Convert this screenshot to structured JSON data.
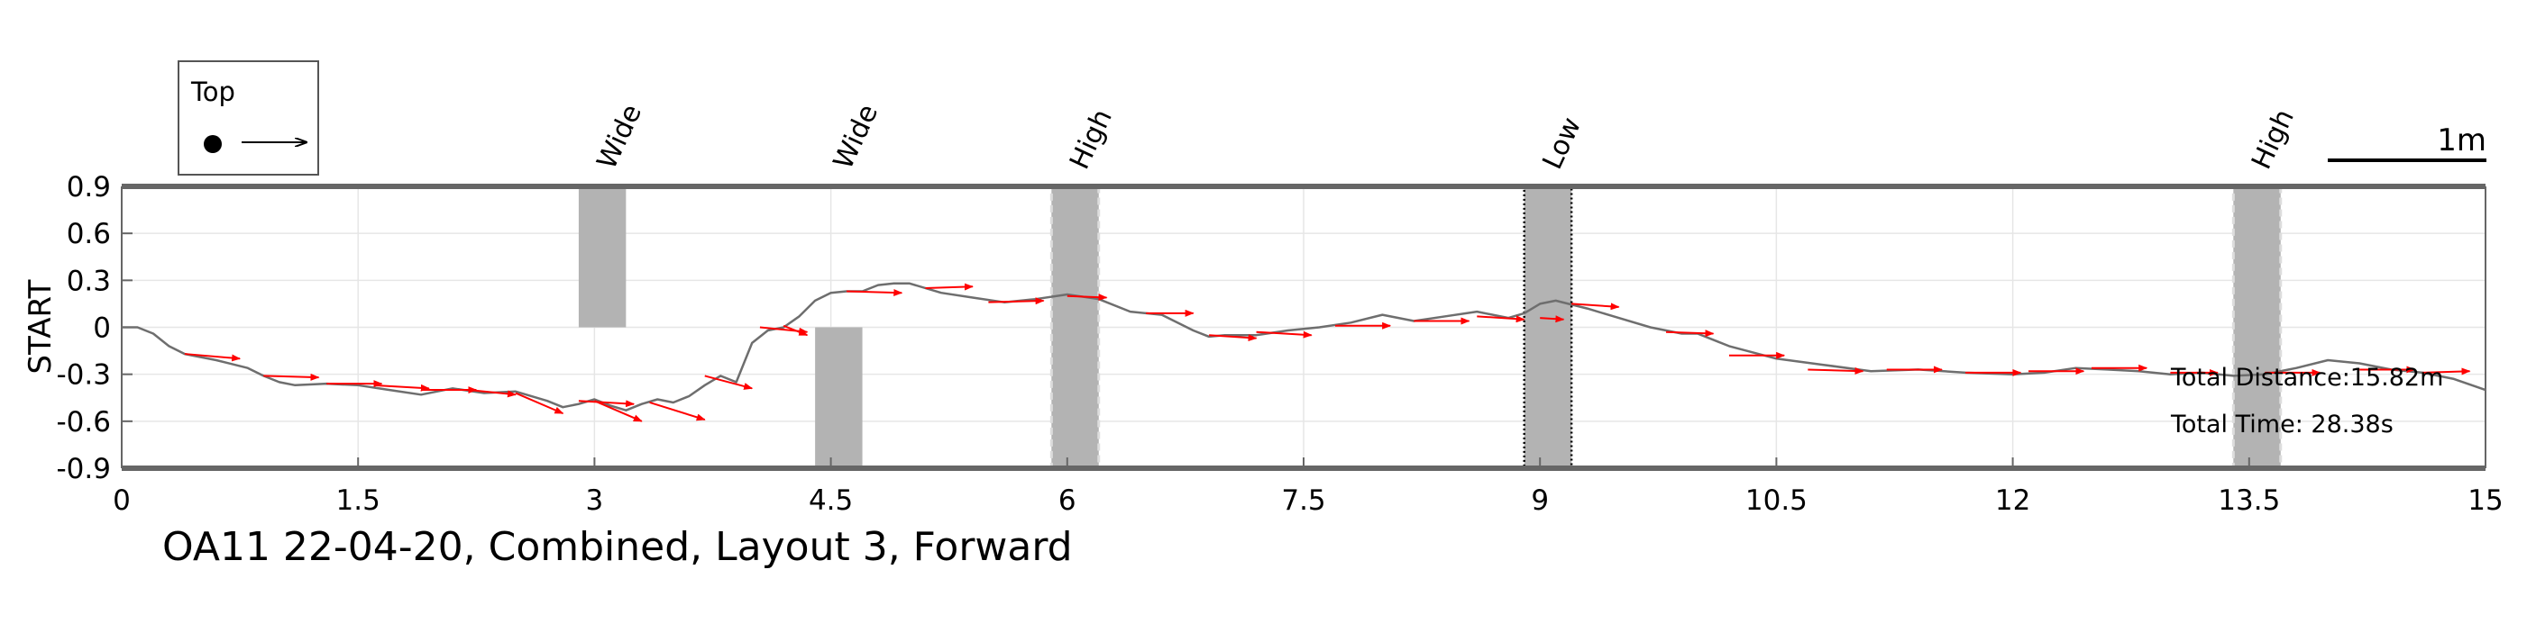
{
  "chart_data": {
    "type": "line",
    "title": "OA11 22-04-20, Combined, Layout 3, Forward",
    "ylabel": "START",
    "xlim": [
      0,
      15
    ],
    "ylim": [
      -0.9,
      0.9
    ],
    "x_ticks": [
      0,
      1.5,
      3,
      4.5,
      6,
      7.5,
      9,
      10.5,
      12,
      13.5,
      15
    ],
    "x_tick_labels": [
      "0",
      "1.5",
      "3",
      "4.5",
      "6",
      "7.5",
      "9",
      "10.5",
      "12",
      "13.5",
      "15"
    ],
    "y_ticks": [
      0.9,
      0.6,
      0.3,
      0,
      -0.3,
      -0.6,
      -0.9
    ],
    "y_tick_labels": [
      "0.9",
      "0.6",
      "0.3",
      "0",
      "-0.3",
      "-0.6",
      "-0.9"
    ],
    "grid": true,
    "legend": {
      "title": "Top",
      "placement": "top-left, outside plot"
    },
    "scale_bar_label": "1m",
    "annotations": [
      "Total Distance:15.82m",
      "Total Time: 28.38s"
    ],
    "obstacles": [
      {
        "label": "Wide",
        "x_start": 2.9,
        "x_end": 3.2,
        "y_start": 0,
        "y_end": 0.9,
        "style": "solid"
      },
      {
        "label": "Wide",
        "x_start": 4.4,
        "x_end": 4.7,
        "y_start": -0.9,
        "y_end": 0,
        "style": "solid"
      },
      {
        "label": "High",
        "x_start": 5.9,
        "x_end": 6.2,
        "y_start": -0.9,
        "y_end": 0.9,
        "style": "dashed"
      },
      {
        "label": "Low",
        "x_start": 8.9,
        "x_end": 9.2,
        "y_start": -0.9,
        "y_end": 0.9,
        "style": "dotted"
      },
      {
        "label": "High",
        "x_start": 13.4,
        "x_end": 13.7,
        "y_start": -0.9,
        "y_end": 0.9,
        "style": "dashed"
      }
    ],
    "series": [
      {
        "color": "#6e6e6e",
        "x": [
          0,
          0.1,
          0.2,
          0.3,
          0.4,
          0.6,
          0.8,
          0.9,
          1.0,
          1.1,
          1.3,
          1.5,
          1.7,
          1.9,
          2.1,
          2.3,
          2.5,
          2.7,
          2.8,
          2.9,
          3.0,
          3.1,
          3.2,
          3.3,
          3.4,
          3.5,
          3.6,
          3.7,
          3.8,
          3.9,
          4.0,
          4.1,
          4.2,
          4.3,
          4.4,
          4.5,
          4.6,
          4.7,
          4.8,
          4.9,
          5.0,
          5.2,
          5.4,
          5.6,
          5.8,
          6.0,
          6.2,
          6.4,
          6.6,
          6.8,
          6.9,
          7.0,
          7.2,
          7.4,
          7.6,
          7.8,
          8.0,
          8.2,
          8.4,
          8.6,
          8.8,
          8.9,
          9.0,
          9.1,
          9.3,
          9.5,
          9.7,
          9.9,
          10.0,
          10.2,
          10.5,
          10.8,
          11.1,
          11.4,
          11.7,
          12.0,
          12.2,
          12.4,
          12.6,
          12.8,
          13.0,
          13.2,
          13.4,
          13.6,
          13.8,
          14.0,
          14.2,
          14.4,
          14.6,
          14.8,
          15.0
        ],
        "y": [
          0.0,
          0.0,
          -0.04,
          -0.12,
          -0.17,
          -0.21,
          -0.26,
          -0.31,
          -0.35,
          -0.37,
          -0.36,
          -0.37,
          -0.4,
          -0.43,
          -0.39,
          -0.42,
          -0.41,
          -0.47,
          -0.51,
          -0.49,
          -0.46,
          -0.5,
          -0.53,
          -0.49,
          -0.46,
          -0.48,
          -0.44,
          -0.37,
          -0.31,
          -0.35,
          -0.1,
          -0.02,
          0.0,
          0.07,
          0.17,
          0.22,
          0.23,
          0.23,
          0.27,
          0.28,
          0.28,
          0.22,
          0.19,
          0.16,
          0.18,
          0.21,
          0.18,
          0.1,
          0.08,
          -0.02,
          -0.06,
          -0.05,
          -0.05,
          -0.02,
          0.0,
          0.03,
          0.08,
          0.04,
          0.07,
          0.1,
          0.06,
          0.09,
          0.15,
          0.17,
          0.12,
          0.06,
          0.0,
          -0.04,
          -0.04,
          -0.12,
          -0.2,
          -0.24,
          -0.28,
          -0.27,
          -0.29,
          -0.3,
          -0.29,
          -0.26,
          -0.27,
          -0.28,
          -0.3,
          -0.29,
          -0.31,
          -0.3,
          -0.26,
          -0.21,
          -0.23,
          -0.27,
          -0.29,
          -0.33,
          -0.4
        ]
      }
    ],
    "heading_arrows": [
      {
        "x": 0.4,
        "y": -0.17,
        "dx": 0.35,
        "dy": -0.03
      },
      {
        "x": 0.9,
        "y": -0.31,
        "dx": 0.35,
        "dy": -0.01
      },
      {
        "x": 1.3,
        "y": -0.36,
        "dx": 0.35,
        "dy": 0.0
      },
      {
        "x": 1.6,
        "y": -0.37,
        "dx": 0.35,
        "dy": -0.02
      },
      {
        "x": 1.9,
        "y": -0.4,
        "dx": 0.35,
        "dy": 0.0
      },
      {
        "x": 2.2,
        "y": -0.4,
        "dx": 0.3,
        "dy": -0.03
      },
      {
        "x": 2.5,
        "y": -0.42,
        "dx": 0.3,
        "dy": -0.13
      },
      {
        "x": 2.9,
        "y": -0.47,
        "dx": 0.35,
        "dy": -0.02
      },
      {
        "x": 3.0,
        "y": -0.47,
        "dx": 0.3,
        "dy": -0.13
      },
      {
        "x": 3.35,
        "y": -0.48,
        "dx": 0.35,
        "dy": -0.11
      },
      {
        "x": 3.7,
        "y": -0.31,
        "dx": 0.3,
        "dy": -0.08
      },
      {
        "x": 4.05,
        "y": 0.0,
        "dx": 0.3,
        "dy": -0.03
      },
      {
        "x": 4.2,
        "y": 0.01,
        "dx": 0.15,
        "dy": -0.06
      },
      {
        "x": 4.6,
        "y": 0.23,
        "dx": 0.35,
        "dy": -0.01
      },
      {
        "x": 5.1,
        "y": 0.25,
        "dx": 0.3,
        "dy": 0.01
      },
      {
        "x": 5.5,
        "y": 0.16,
        "dx": 0.35,
        "dy": 0.01
      },
      {
        "x": 6.0,
        "y": 0.2,
        "dx": 0.25,
        "dy": -0.01
      },
      {
        "x": 6.5,
        "y": 0.09,
        "dx": 0.3,
        "dy": 0.0
      },
      {
        "x": 6.9,
        "y": -0.05,
        "dx": 0.3,
        "dy": -0.02
      },
      {
        "x": 7.2,
        "y": -0.03,
        "dx": 0.35,
        "dy": -0.02
      },
      {
        "x": 7.7,
        "y": 0.01,
        "dx": 0.35,
        "dy": 0.0
      },
      {
        "x": 8.2,
        "y": 0.04,
        "dx": 0.35,
        "dy": 0.0
      },
      {
        "x": 8.6,
        "y": 0.07,
        "dx": 0.3,
        "dy": -0.02
      },
      {
        "x": 9.0,
        "y": 0.06,
        "dx": 0.15,
        "dy": -0.01
      },
      {
        "x": 9.2,
        "y": 0.15,
        "dx": 0.3,
        "dy": -0.02
      },
      {
        "x": 9.8,
        "y": -0.03,
        "dx": 0.3,
        "dy": -0.01
      },
      {
        "x": 10.2,
        "y": -0.18,
        "dx": 0.35,
        "dy": 0.0
      },
      {
        "x": 10.7,
        "y": -0.27,
        "dx": 0.35,
        "dy": -0.01
      },
      {
        "x": 11.2,
        "y": -0.27,
        "dx": 0.35,
        "dy": 0.0
      },
      {
        "x": 11.7,
        "y": -0.29,
        "dx": 0.35,
        "dy": 0.0
      },
      {
        "x": 12.1,
        "y": -0.28,
        "dx": 0.35,
        "dy": 0.0
      },
      {
        "x": 12.5,
        "y": -0.26,
        "dx": 0.35,
        "dy": 0.0
      },
      {
        "x": 13.0,
        "y": -0.29,
        "dx": 0.3,
        "dy": 0.0
      },
      {
        "x": 13.6,
        "y": -0.29,
        "dx": 0.35,
        "dy": 0.0
      },
      {
        "x": 14.2,
        "y": -0.27,
        "dx": 0.35,
        "dy": 0.0
      },
      {
        "x": 14.6,
        "y": -0.29,
        "dx": 0.3,
        "dy": 0.01
      }
    ]
  },
  "colors": {
    "trajectory": "#6e6e6e",
    "arrows": "#ff0000",
    "obstacle_fill": "#b3b3b3",
    "grid": "#e6e6e6",
    "axis": "#666666"
  }
}
